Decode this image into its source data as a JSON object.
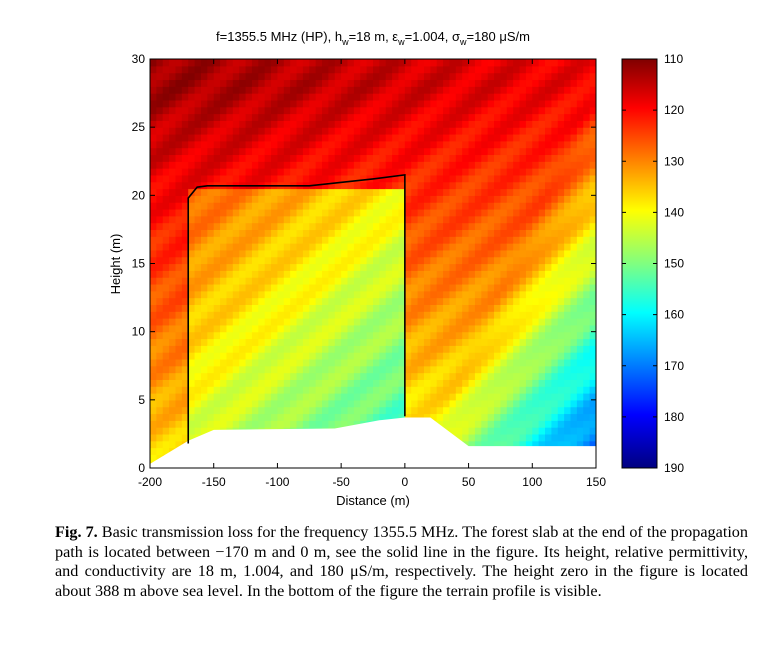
{
  "chart_data": {
    "type": "heatmap",
    "title": {
      "prefix": "f=1355.5 MHz (HP), h",
      "h_sub": "w",
      "h_val": "=18 m, ε",
      "eps_sub": "w",
      "eps_val": "=1.004, σ",
      "sig_sub": "w",
      "sig_val": "=180 μS/m"
    },
    "xlabel": "Distance (m)",
    "ylabel": "Height (m)",
    "xlim": [
      -200,
      150
    ],
    "ylim": [
      0,
      30
    ],
    "xticks": [
      -200,
      -150,
      -100,
      -50,
      0,
      50,
      100,
      150
    ],
    "yticks": [
      0,
      5,
      10,
      15,
      20,
      25,
      30
    ],
    "colorbar": {
      "range": [
        110,
        190
      ],
      "ticks": [
        110,
        120,
        130,
        140,
        150,
        160,
        170,
        180,
        190
      ],
      "colormap": "jet-reversed"
    },
    "forest_slab": {
      "x": [
        -170,
        -170,
        -163,
        -155,
        -75,
        -25,
        0,
        0
      ],
      "y": [
        1.8,
        19.8,
        20.6,
        20.7,
        20.7,
        21.2,
        21.5,
        3.8
      ]
    },
    "terrain_profile": {
      "x": [
        -200,
        -170,
        -150,
        -55,
        -20,
        0,
        20,
        50,
        150
      ],
      "y": [
        0.3,
        2.0,
        2.8,
        2.9,
        3.5,
        3.7,
        3.7,
        1.6,
        1.6
      ]
    }
  },
  "caption": {
    "label": "Fig. 7.",
    "text": "Basic transmission loss for the frequency 1355.5 MHz. The forest slab at the end of the propagation path is located between −170 m and 0 m, see the solid line in the figure. Its height, relative permittivity, and conductivity are 18 m, 1.004, and 180 μS/m, respectively. The height zero in the figure is located about 388 m above sea level. In the bottom of the figure the terrain profile is visible."
  },
  "colors": {
    "background": "#ffffff",
    "axis": "#000000",
    "slab_line": "#000000"
  }
}
